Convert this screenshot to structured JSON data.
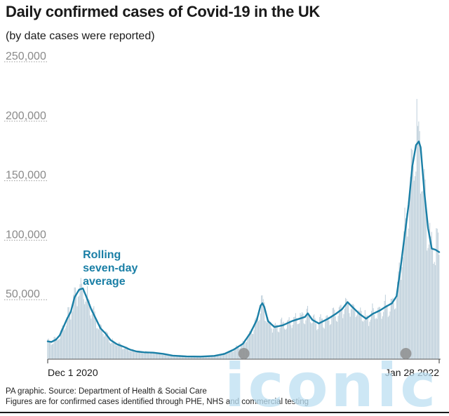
{
  "header": {
    "title": "Daily confirmed cases of Covid-19 in the UK",
    "subtitle": "(by date cases were reported)"
  },
  "footer": {
    "source_line": "PA graphic. Source: Department of Health & Social Care",
    "note_line": "Figures are for confirmed cases identified through PHE, NHS and commercial testing"
  },
  "watermark": {
    "text": "iconic"
  },
  "colors": {
    "bars": "#bfd0db",
    "line": "#1a7fa6",
    "annotation": "#1a7fa6",
    "grid": "#9a9a9a",
    "tick_text": "#8a8a8a",
    "markers": "#8a8a8a",
    "watermark": "#bcdff2"
  },
  "chart_data": {
    "type": "bar",
    "title": "Daily confirmed cases of Covid-19 in the UK",
    "subtitle": "(by date cases were reported)",
    "xlabel": "",
    "ylabel": "",
    "ylim": [
      0,
      250000
    ],
    "grid": true,
    "yticks": [
      {
        "value": 50000,
        "label": "50,000"
      },
      {
        "value": 100000,
        "label": "100,000"
      },
      {
        "value": 150000,
        "label": "150,000"
      },
      {
        "value": 200000,
        "label": "200,000"
      },
      {
        "value": 250000,
        "label": "250,000"
      }
    ],
    "xrange": [
      "2020-12-01",
      "2022-01-28"
    ],
    "xticks": [
      {
        "date": "2020-12-01",
        "label": "Dec 1 2020"
      },
      {
        "date": "2022-01-28",
        "label": "Jan 28 2022"
      }
    ],
    "annotation": {
      "lines": [
        "Rolling",
        "seven-day",
        "average"
      ],
      "date": "2021-01-08",
      "value": 85000
    },
    "markers": [
      {
        "date": "2021-07-01"
      },
      {
        "date": "2021-12-23"
      }
    ],
    "bars": {
      "pattern": "daily-reported",
      "spike": {
        "date": "2022-01-04",
        "value": 218700
      }
    },
    "series": [
      {
        "name": "Rolling seven-day average",
        "style": "line",
        "points": [
          [
            "2020-12-01",
            15000
          ],
          [
            "2020-12-05",
            14500
          ],
          [
            "2020-12-10",
            16500
          ],
          [
            "2020-12-14",
            20000
          ],
          [
            "2020-12-18",
            27000
          ],
          [
            "2020-12-22",
            34000
          ],
          [
            "2020-12-26",
            40000
          ],
          [
            "2020-12-30",
            52000
          ],
          [
            "2021-01-04",
            58500
          ],
          [
            "2021-01-08",
            59500
          ],
          [
            "2021-01-12",
            52000
          ],
          [
            "2021-01-17",
            42000
          ],
          [
            "2021-01-22",
            34000
          ],
          [
            "2021-01-27",
            26000
          ],
          [
            "2021-02-01",
            22000
          ],
          [
            "2021-02-07",
            16000
          ],
          [
            "2021-02-14",
            12500
          ],
          [
            "2021-02-21",
            10500
          ],
          [
            "2021-02-28",
            8000
          ],
          [
            "2021-03-07",
            6500
          ],
          [
            "2021-03-15",
            5800
          ],
          [
            "2021-03-25",
            5500
          ],
          [
            "2021-04-05",
            4500
          ],
          [
            "2021-04-15",
            3000
          ],
          [
            "2021-04-30",
            2300
          ],
          [
            "2021-05-15",
            2200
          ],
          [
            "2021-05-30",
            2800
          ],
          [
            "2021-06-10",
            4500
          ],
          [
            "2021-06-20",
            8000
          ],
          [
            "2021-06-30",
            13000
          ],
          [
            "2021-07-08",
            22000
          ],
          [
            "2021-07-15",
            33000
          ],
          [
            "2021-07-19",
            45000
          ],
          [
            "2021-07-21",
            47000
          ],
          [
            "2021-07-23",
            44000
          ],
          [
            "2021-07-27",
            32000
          ],
          [
            "2021-08-03",
            27000
          ],
          [
            "2021-08-12",
            28500
          ],
          [
            "2021-08-22",
            32000
          ],
          [
            "2021-08-30",
            34000
          ],
          [
            "2021-09-05",
            35500
          ],
          [
            "2021-09-08",
            38500
          ],
          [
            "2021-09-13",
            33000
          ],
          [
            "2021-09-20",
            30000
          ],
          [
            "2021-09-30",
            34000
          ],
          [
            "2021-10-08",
            38000
          ],
          [
            "2021-10-15",
            42000
          ],
          [
            "2021-10-21",
            48000
          ],
          [
            "2021-10-26",
            44000
          ],
          [
            "2021-11-03",
            38000
          ],
          [
            "2021-11-10",
            34000
          ],
          [
            "2021-11-17",
            38000
          ],
          [
            "2021-11-25",
            41000
          ],
          [
            "2021-12-01",
            44000
          ],
          [
            "2021-12-08",
            47000
          ],
          [
            "2021-12-13",
            53000
          ],
          [
            "2021-12-17",
            75000
          ],
          [
            "2021-12-21",
            100000
          ],
          [
            "2021-12-26",
            130000
          ],
          [
            "2021-12-30",
            162000
          ],
          [
            "2022-01-03",
            180000
          ],
          [
            "2022-01-06",
            183000
          ],
          [
            "2022-01-08",
            178000
          ],
          [
            "2022-01-12",
            140000
          ],
          [
            "2022-01-16",
            110000
          ],
          [
            "2022-01-20",
            93000
          ],
          [
            "2022-01-24",
            92000
          ],
          [
            "2022-01-28",
            90000
          ]
        ]
      }
    ]
  }
}
